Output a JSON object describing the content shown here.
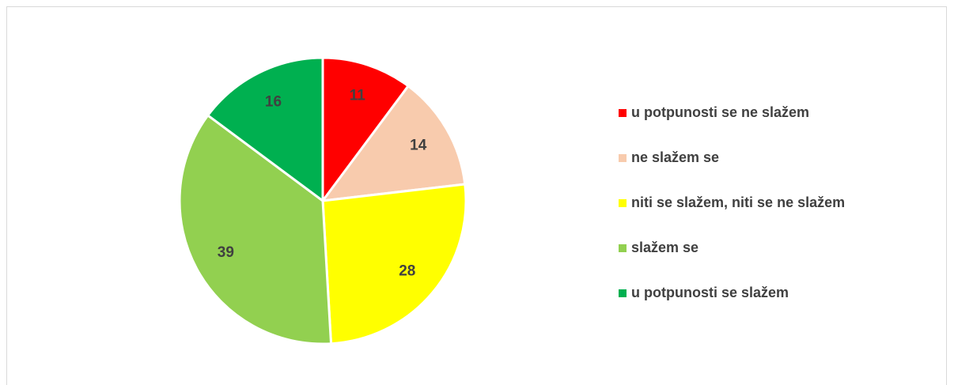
{
  "chart_data": {
    "type": "pie",
    "categories": [
      "u potpunosti se ne slažem",
      "ne slažem se",
      "niti se slažem, niti se ne slažem",
      "slažem se",
      "u potpunosti se slažem"
    ],
    "values": [
      11,
      14,
      28,
      39,
      16
    ],
    "colors": [
      "#ff0000",
      "#f8cbad",
      "#ffff00",
      "#92d050",
      "#00b050"
    ],
    "legend": "right"
  }
}
